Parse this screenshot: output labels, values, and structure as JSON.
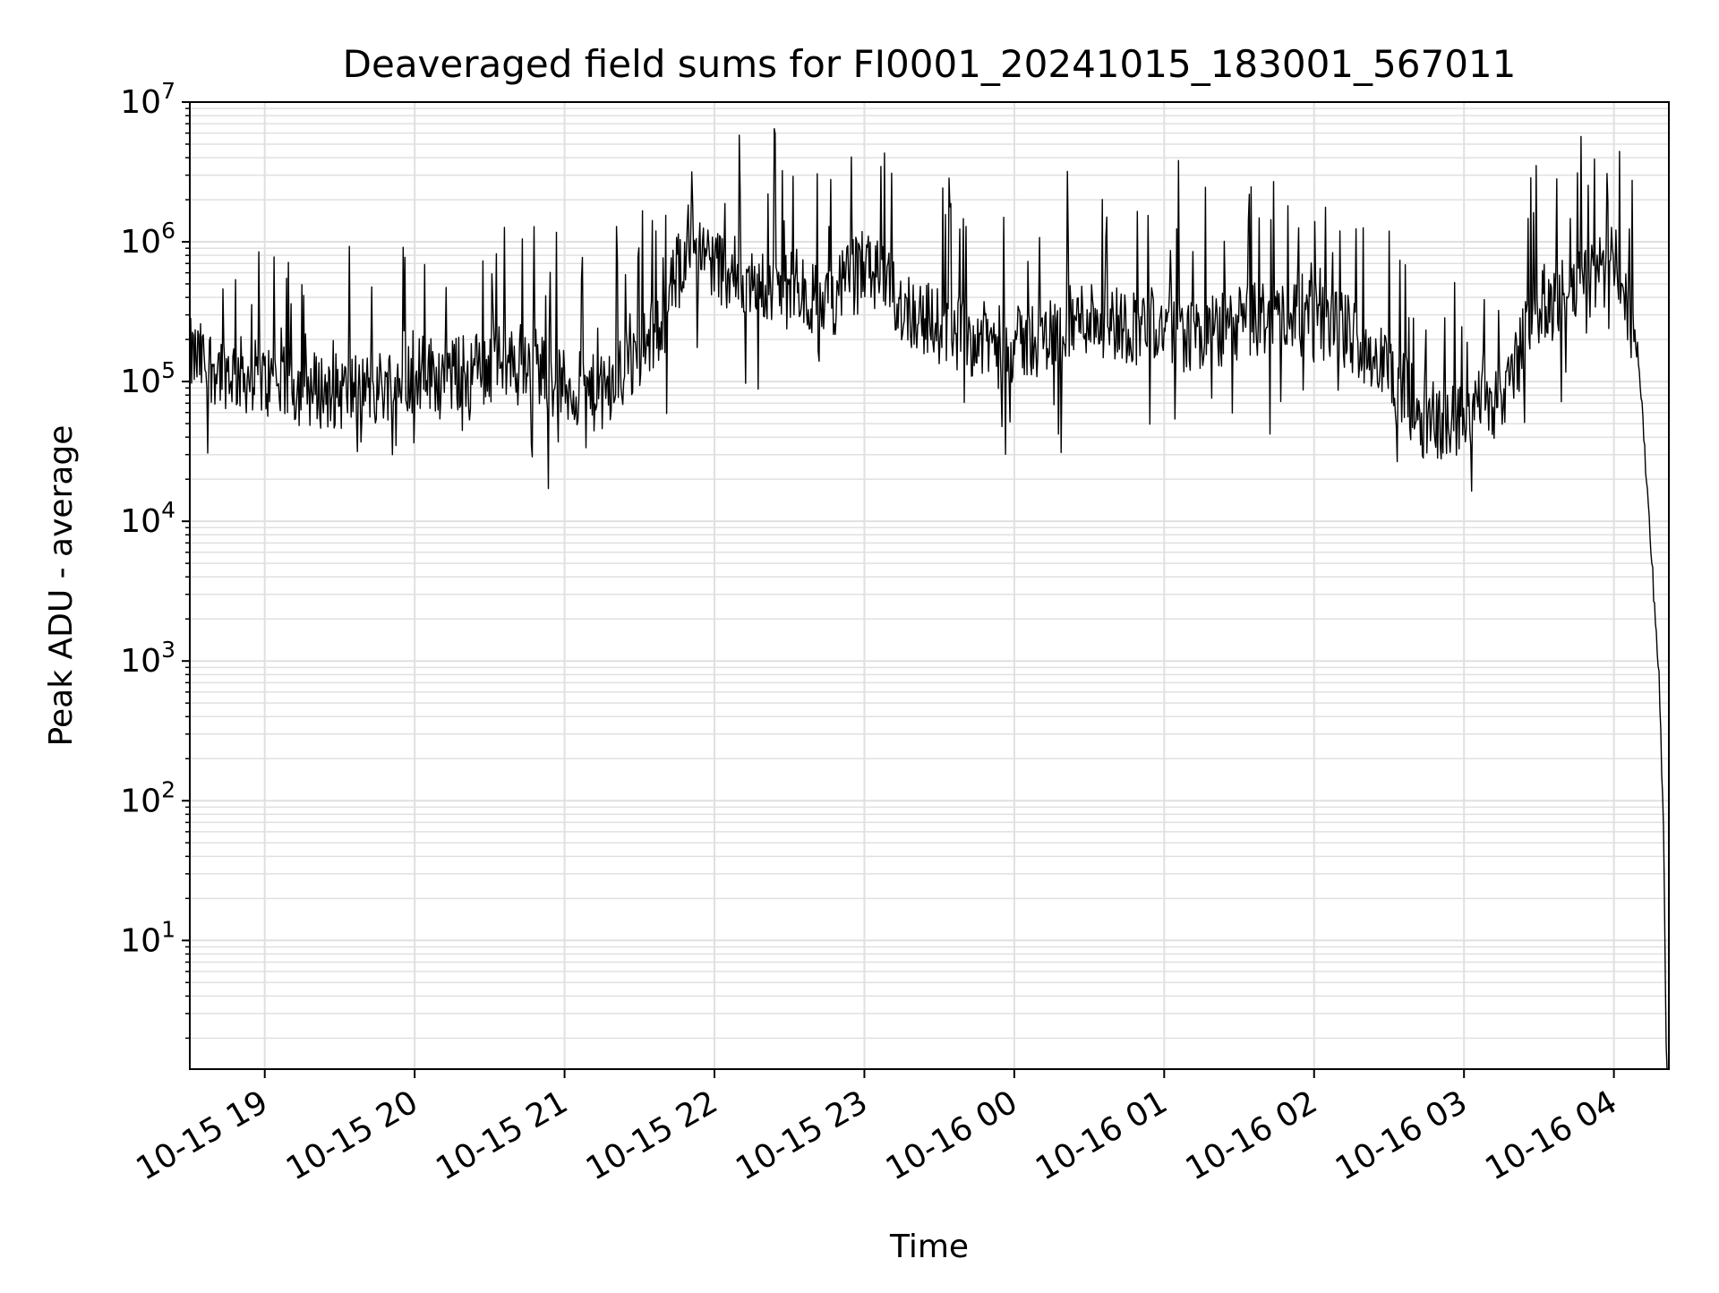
{
  "chart_data": {
    "type": "line",
    "title": "Deaveraged field sums for FI0001_20241015_183001_567011",
    "xlabel": "Time",
    "ylabel": "Peak ADU - average",
    "yscale": "log",
    "ylim": [
      1.2,
      10000000
    ],
    "xlim": [
      "2024-10-15 18:30",
      "2024-10-16 04:22"
    ],
    "grid": true,
    "grid_color": "#e0e0e0",
    "line_color": "#000000",
    "x_ticks": [
      {
        "value": "2024-10-15 19:00",
        "label": "10-15 19"
      },
      {
        "value": "2024-10-15 20:00",
        "label": "10-15 20"
      },
      {
        "value": "2024-10-15 21:00",
        "label": "10-15 21"
      },
      {
        "value": "2024-10-15 22:00",
        "label": "10-15 22"
      },
      {
        "value": "2024-10-15 23:00",
        "label": "10-15 23"
      },
      {
        "value": "2024-10-16 00:00",
        "label": "10-16 00"
      },
      {
        "value": "2024-10-16 01:00",
        "label": "10-16 01"
      },
      {
        "value": "2024-10-16 02:00",
        "label": "10-16 02"
      },
      {
        "value": "2024-10-16 03:00",
        "label": "10-16 03"
      },
      {
        "value": "2024-10-16 04:00",
        "label": "10-16 04"
      }
    ],
    "y_ticks": [
      {
        "value": 10,
        "base": "10",
        "exp": "1"
      },
      {
        "value": 100,
        "base": "10",
        "exp": "2"
      },
      {
        "value": 1000,
        "base": "10",
        "exp": "3"
      },
      {
        "value": 10000,
        "base": "10",
        "exp": "4"
      },
      {
        "value": 100000,
        "base": "10",
        "exp": "5"
      },
      {
        "value": 1000000,
        "base": "10",
        "exp": "6"
      },
      {
        "value": 10000000,
        "base": "10",
        "exp": "7"
      }
    ],
    "series": [
      {
        "x": [
          "2024-10-15 18:30",
          "2024-10-15 18:45",
          "2024-10-15 19:00",
          "2024-10-15 19:15",
          "2024-10-15 19:30",
          "2024-10-15 19:45",
          "2024-10-15 20:00",
          "2024-10-15 20:15",
          "2024-10-15 20:30",
          "2024-10-15 20:45",
          "2024-10-15 21:00",
          "2024-10-15 21:15",
          "2024-10-15 21:30",
          "2024-10-15 21:40",
          "2024-10-15 21:50",
          "2024-10-15 22:00",
          "2024-10-15 22:15",
          "2024-10-15 22:30",
          "2024-10-15 22:45",
          "2024-10-15 23:00",
          "2024-10-15 23:15",
          "2024-10-15 23:30",
          "2024-10-15 23:45",
          "2024-10-16 00:00",
          "2024-10-16 00:15",
          "2024-10-16 00:30",
          "2024-10-16 00:45",
          "2024-10-16 01:00",
          "2024-10-16 01:15",
          "2024-10-16 01:30",
          "2024-10-16 01:45",
          "2024-10-16 02:00",
          "2024-10-16 02:15",
          "2024-10-16 02:30",
          "2024-10-16 02:45",
          "2024-10-16 03:00",
          "2024-10-16 03:15",
          "2024-10-16 03:30",
          "2024-10-16 03:45",
          "2024-10-16 04:00",
          "2024-10-16 04:05",
          "2024-10-16 04:10",
          "2024-10-16 04:13",
          "2024-10-16 04:16",
          "2024-10-16 04:18",
          "2024-10-16 04:20",
          "2024-10-16 04:21"
        ],
        "y": [
          150000,
          120000,
          100000,
          90000,
          85000,
          90000,
          120000,
          110000,
          130000,
          150000,
          90000,
          80000,
          150000,
          300000,
          1200000,
          700000,
          500000,
          450000,
          350000,
          700000,
          350000,
          250000,
          200000,
          180000,
          220000,
          300000,
          250000,
          250000,
          200000,
          260000,
          300000,
          280000,
          220000,
          120000,
          50000,
          55000,
          80000,
          350000,
          450000,
          700000,
          400000,
          150000,
          20000,
          3000,
          800,
          50,
          1.2
        ]
      }
    ]
  }
}
